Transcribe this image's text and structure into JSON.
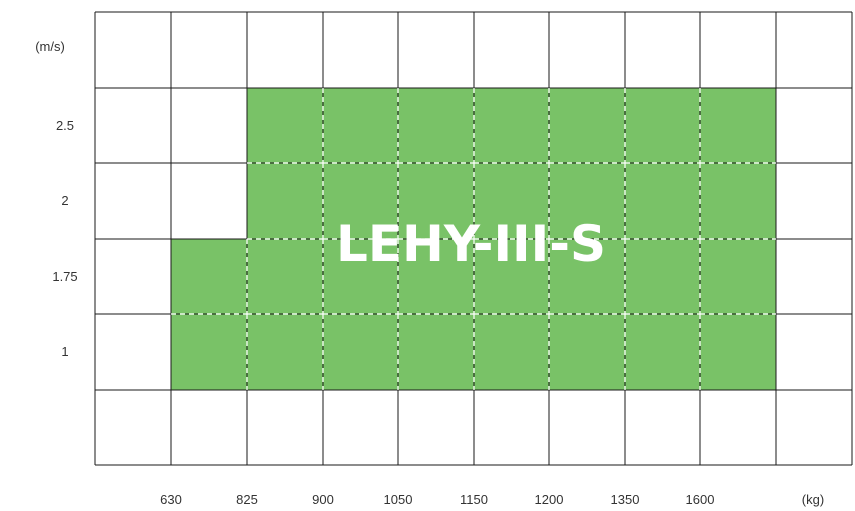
{
  "chart_data": {
    "type": "heatmap",
    "x_unit": "(kg)",
    "y_unit": "(m/s)",
    "x_ticks": [
      "630",
      "825",
      "900",
      "1050",
      "1150",
      "1200",
      "1350",
      "1600"
    ],
    "y_ticks": [
      "2.5",
      "2",
      "1.75",
      "1"
    ],
    "series": [
      {
        "name": "LEHY-III-S",
        "color": "#79c267",
        "coverage": [
          {
            "speed": "2.5",
            "loads": [
              "825",
              "900",
              "1050",
              "1150",
              "1200",
              "1350",
              "1600"
            ]
          },
          {
            "speed": "2",
            "loads": [
              "825",
              "900",
              "1050",
              "1150",
              "1200",
              "1350",
              "1600"
            ]
          },
          {
            "speed": "1.75",
            "loads": [
              "630",
              "825",
              "900",
              "1050",
              "1150",
              "1200",
              "1350",
              "1600"
            ]
          },
          {
            "speed": "1",
            "loads": [
              "630",
              "825",
              "900",
              "1050",
              "1150",
              "1200",
              "1350",
              "1600"
            ]
          }
        ]
      }
    ],
    "grid": true,
    "grid_color": "#1a1a1a",
    "inner_grid_color": "#ffffff"
  }
}
